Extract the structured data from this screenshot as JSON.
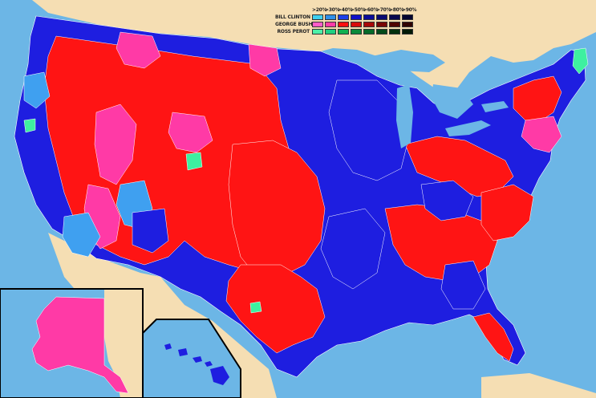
{
  "legend": {
    "thresholds": [
      ">20%",
      ">30%",
      ">40%",
      ">50%",
      ">60%",
      ">70%",
      ">80%",
      ">90%"
    ],
    "candidates": [
      {
        "name": "BILL CLINTON",
        "colors": [
          "#3fd0f0",
          "#2f8fe8",
          "#1e3fe8",
          "#1010c8",
          "#0c0c9a",
          "#0a0a72",
          "#08084e",
          "#050530"
        ]
      },
      {
        "name": "GEORGE BUSH",
        "colors": [
          "#ff5cc8",
          "#ff3aa6",
          "#ff1010",
          "#d80a0a",
          "#a80808",
          "#780606",
          "#500404",
          "#300202"
        ]
      },
      {
        "name": "ROSS PEROT",
        "colors": [
          "#4ef0a8",
          "#20d080",
          "#10b050",
          "#0a8a3a",
          "#066a28",
          "#044a1a",
          "#02300e",
          "#011a06"
        ]
      }
    ]
  },
  "colors": {
    "water": "#6cb6e6",
    "land": "#f5deb3",
    "clinton_main": "#1e1ee0",
    "bush_main": "#ff1414",
    "bush_light": "#ff3aa6",
    "clinton_light": "#3fa0f0",
    "perot": "#3ef0a0"
  }
}
